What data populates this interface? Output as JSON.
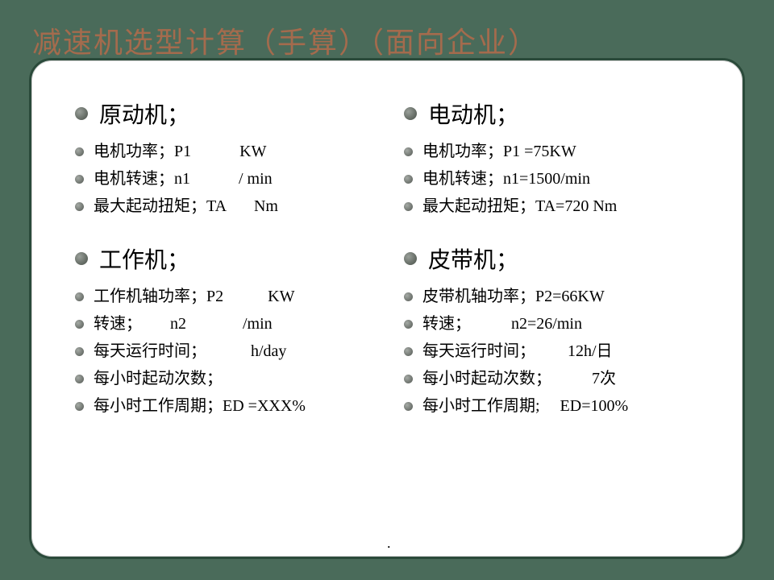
{
  "colors": {
    "page_bg": "#4a6b5a",
    "panel_bg": "#ffffff",
    "panel_border": "#2a4a3a",
    "title_color": "#a46b4d",
    "text_color": "#000000"
  },
  "title": "减速机选型计算（手算）（面向企业）",
  "left": {
    "section1": {
      "head": "原动机；",
      "items": [
        "电机功率；P1            KW",
        "电机转速；n1            / min",
        "最大起动扭矩；TA       Nm"
      ]
    },
    "section2": {
      "head": "工作机；",
      "items": [
        "工作机轴功率；P2           KW",
        "转速；       n2              /min",
        "每天运行时间；           h/day",
        "每小时起动次数；",
        "每小时工作周期；ED =XXX%"
      ]
    }
  },
  "right": {
    "section1": {
      "head": "电动机；",
      "items": [
        "电机功率；P1 =75KW",
        "电机转速；n1=1500/min",
        "最大起动扭矩；TA=720 Nm"
      ]
    },
    "section2": {
      "head": "皮带机；",
      "items": [
        "皮带机轴功率；P2=66KW",
        "转速；          n2=26/min",
        "每天运行时间；        12h/日",
        "每小时起动次数；          7次",
        "每小时工作周期;     ED=100%"
      ]
    }
  },
  "footer_dot": "."
}
